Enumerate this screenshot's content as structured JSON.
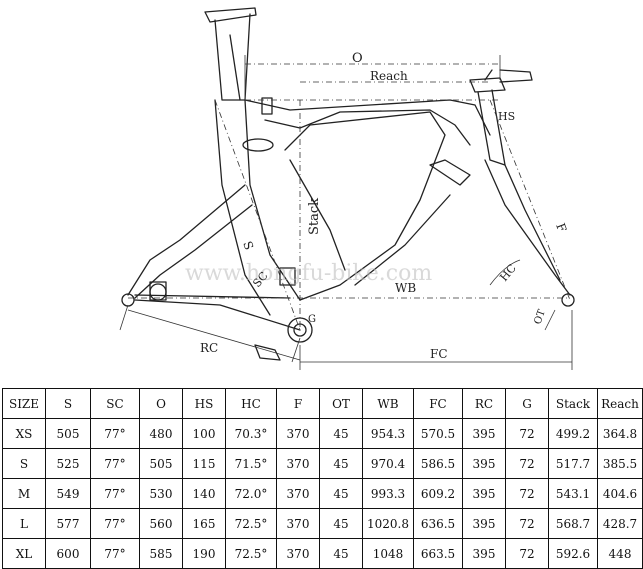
{
  "diagram": {
    "labels": {
      "o": "O",
      "reach": "Reach",
      "hs": "HS",
      "stack": "Stack",
      "s": "S",
      "sc": "SC",
      "wb": "WB",
      "hc": "HC",
      "f": "F",
      "ot": "OT",
      "rc": "RC",
      "fc": "FC",
      "g": "G"
    },
    "watermark": "www.hongfu-bike.com"
  },
  "table": {
    "headers": [
      "SIZE",
      "S",
      "SC",
      "O",
      "HS",
      "HC",
      "F",
      "OT",
      "WB",
      "FC",
      "RC",
      "G",
      "Stack",
      "Reach"
    ],
    "rows": [
      [
        "XS",
        "505",
        "77°",
        "480",
        "100",
        "70.3°",
        "370",
        "45",
        "954.3",
        "570.5",
        "395",
        "72",
        "499.2",
        "364.8"
      ],
      [
        "S",
        "525",
        "77°",
        "505",
        "115",
        "71.5°",
        "370",
        "45",
        "970.4",
        "586.5",
        "395",
        "72",
        "517.7",
        "385.5"
      ],
      [
        "M",
        "549",
        "77°",
        "530",
        "140",
        "72.0°",
        "370",
        "45",
        "993.3",
        "609.2",
        "395",
        "72",
        "543.1",
        "404.6"
      ],
      [
        "L",
        "577",
        "77°",
        "560",
        "165",
        "72.5°",
        "370",
        "45",
        "1020.8",
        "636.5",
        "395",
        "72",
        "568.7",
        "428.7"
      ],
      [
        "XL",
        "600",
        "77°",
        "585",
        "190",
        "72.5°",
        "370",
        "45",
        "1048",
        "663.5",
        "395",
        "72",
        "592.6",
        "448"
      ]
    ]
  }
}
